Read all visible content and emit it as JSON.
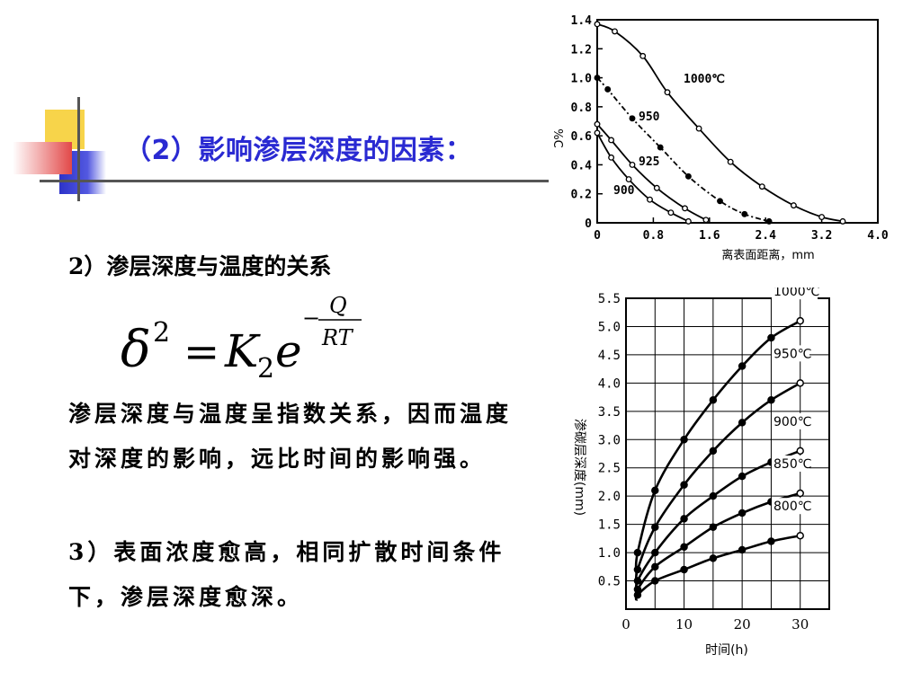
{
  "slide": {
    "title": "（2）影响渗层深度的因素：",
    "line_1": "2）渗层深度与温度的关系",
    "formula": {
      "lhs_symbol": "δ",
      "lhs_exp": "2",
      "equals": "=",
      "K": "K",
      "K_sub": "2",
      "e": "e",
      "minus": "−",
      "num": "Q",
      "den": "RT"
    },
    "para_1": "渗层深度与温度呈指数关系，因而温度对深度的影响，远比时间的影响强。",
    "para_2": "3）表面浓度愈高，相同扩散时间条件下，渗层深度愈深。"
  },
  "chart_data": [
    {
      "type": "line",
      "xlabel": "离表面距离，mm",
      "ylabel": "%C",
      "xlim": [
        0,
        4.0
      ],
      "ylim": [
        0,
        1.4
      ],
      "x_ticks": [
        "0",
        "0.8",
        "1.6",
        "2.4",
        "3.2",
        "4.0"
      ],
      "x_tick_values": [
        0,
        0.8,
        1.6,
        2.4,
        3.2,
        4.0
      ],
      "y_ticks": [
        "0",
        "0.2",
        "0.4",
        "0.6",
        "0.8",
        "1.0",
        "1.2",
        "1.4"
      ],
      "y_tick_values": [
        0,
        0.2,
        0.4,
        0.6,
        0.8,
        1.0,
        1.2,
        1.4
      ],
      "grid": false,
      "series": [
        {
          "name": "1000℃",
          "marker": "open",
          "x": [
            0,
            0.25,
            0.65,
            1.0,
            1.45,
            1.9,
            2.35,
            2.8,
            3.2,
            3.5
          ],
          "y": [
            1.37,
            1.32,
            1.15,
            0.9,
            0.65,
            0.42,
            0.25,
            0.12,
            0.04,
            0.01
          ]
        },
        {
          "name": "950",
          "marker": "filled",
          "dash": true,
          "x": [
            0,
            0.15,
            0.5,
            0.9,
            1.3,
            1.75,
            2.1,
            2.45
          ],
          "y": [
            1.0,
            0.92,
            0.72,
            0.52,
            0.32,
            0.15,
            0.06,
            0.01
          ]
        },
        {
          "name": "925",
          "marker": "open",
          "x": [
            0,
            0.2,
            0.5,
            0.85,
            1.25,
            1.55
          ],
          "y": [
            0.68,
            0.57,
            0.4,
            0.24,
            0.1,
            0.02
          ]
        },
        {
          "name": "900",
          "marker": "open",
          "x": [
            0,
            0.2,
            0.45,
            0.75,
            1.05,
            1.3
          ],
          "y": [
            0.62,
            0.45,
            0.3,
            0.16,
            0.07,
            0.01
          ]
        }
      ]
    },
    {
      "type": "line",
      "xlabel": "时间(h)",
      "ylabel": "渗碳层深度(mm)",
      "xlim": [
        0,
        35
      ],
      "ylim": [
        0,
        5.5
      ],
      "x_ticks": [
        "0",
        "10",
        "20",
        "30"
      ],
      "x_tick_values": [
        0,
        10,
        20,
        30
      ],
      "y_ticks": [
        "0.5",
        "1.0",
        "1.5",
        "2.0",
        "2.5",
        "3.0",
        "3.5",
        "4.0",
        "4.5",
        "5.0",
        "5.5"
      ],
      "y_tick_values": [
        0.5,
        1.0,
        1.5,
        2.0,
        2.5,
        3.0,
        3.5,
        4.0,
        4.5,
        5.0,
        5.5
      ],
      "grid": true,
      "series": [
        {
          "name": "1000℃",
          "x": [
            2,
            5,
            10,
            15,
            20,
            25,
            30
          ],
          "y": [
            1.0,
            2.1,
            3.0,
            3.7,
            4.3,
            4.8,
            5.1
          ]
        },
        {
          "name": "950℃",
          "x": [
            2,
            5,
            10,
            15,
            20,
            25,
            30
          ],
          "y": [
            0.7,
            1.45,
            2.2,
            2.8,
            3.3,
            3.7,
            4.0
          ]
        },
        {
          "name": "900℃",
          "x": [
            2,
            5,
            10,
            15,
            20,
            25,
            30
          ],
          "y": [
            0.5,
            1.0,
            1.6,
            2.0,
            2.35,
            2.6,
            2.8
          ]
        },
        {
          "name": "850℃",
          "x": [
            2,
            5,
            10,
            15,
            20,
            25,
            30
          ],
          "y": [
            0.35,
            0.75,
            1.1,
            1.45,
            1.7,
            1.9,
            2.05
          ]
        },
        {
          "name": "800℃",
          "x": [
            2,
            5,
            10,
            15,
            20,
            25,
            30
          ],
          "y": [
            0.25,
            0.5,
            0.7,
            0.9,
            1.05,
            1.2,
            1.3
          ]
        }
      ]
    }
  ]
}
